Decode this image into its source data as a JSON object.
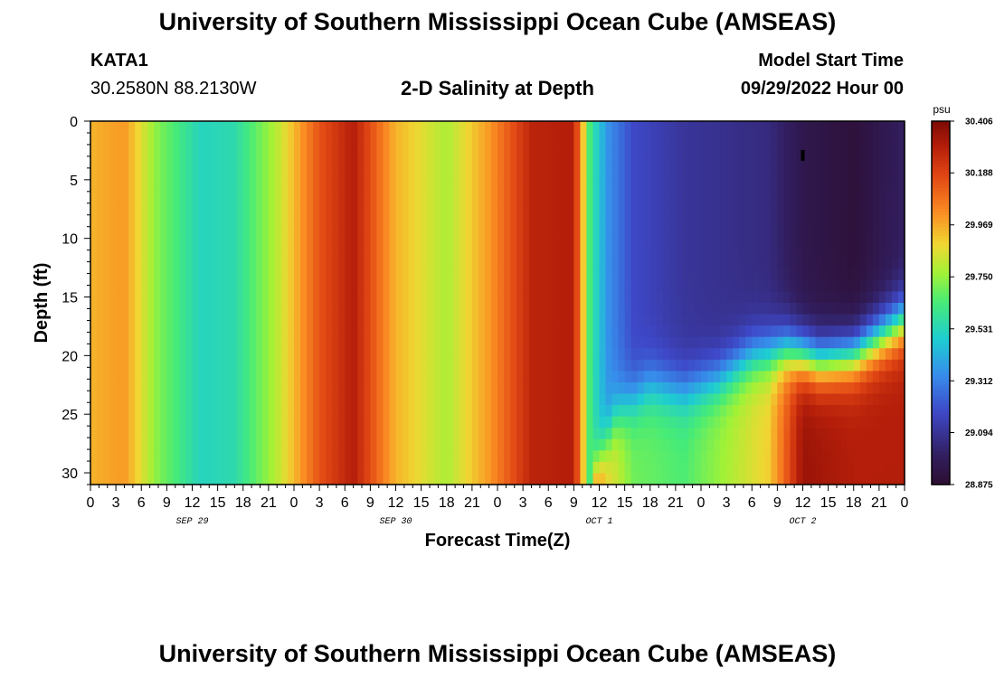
{
  "header": {
    "title": "University of Southern Mississippi Ocean Cube (AMSEAS)",
    "station": "KATA1",
    "coords": "30.2580N  88.2130W",
    "chart_title": "2-D Salinity at Depth",
    "model_start_label": "Model Start Time",
    "model_start_value": "09/29/2022 Hour 00"
  },
  "footer": {
    "title": "University of Southern Mississippi Ocean Cube (AMSEAS)"
  },
  "chart_data": {
    "type": "heatmap",
    "title": "2-D Salinity at Depth",
    "xlabel": "Forecast Time(Z)",
    "ylabel": "Depth (ft)",
    "x_ticks": [
      "0",
      "3",
      "6",
      "9",
      "12",
      "15",
      "18",
      "21",
      "0",
      "3",
      "6",
      "9",
      "12",
      "15",
      "18",
      "21",
      "0",
      "3",
      "6",
      "9",
      "12",
      "15",
      "18",
      "21",
      "0",
      "3",
      "6",
      "9",
      "12",
      "15",
      "18",
      "21",
      "0"
    ],
    "date_labels": [
      "SEP 29",
      "SEP 30",
      "OCT 1",
      "OCT 2"
    ],
    "x_range_hours": [
      0,
      96
    ],
    "y_ticks": [
      0,
      5,
      10,
      15,
      20,
      25,
      30
    ],
    "y_range": [
      0,
      31
    ],
    "y_inverted": true,
    "colorbar": {
      "unit": "psu",
      "min": 28.875,
      "max": 30.406,
      "labels": [
        "30.406",
        "30.188",
        "29.969",
        "29.750",
        "29.531",
        "29.312",
        "29.094",
        "28.875"
      ]
    },
    "column_profile": {
      "description_hours": [
        0,
        4,
        8,
        13,
        17,
        22,
        27,
        31,
        36,
        42,
        47,
        52,
        57,
        59,
        61,
        64,
        70,
        80,
        84,
        90,
        96
      ],
      "surface_psu": [
        29.95,
        30.0,
        29.72,
        29.52,
        29.55,
        29.8,
        30.15,
        30.3,
        29.95,
        29.78,
        30.0,
        30.28,
        30.3,
        29.6,
        29.35,
        29.18,
        29.1,
        29.05,
        28.95,
        28.9,
        29.0
      ],
      "bottom_psu": [
        29.95,
        30.0,
        29.72,
        29.52,
        29.55,
        29.8,
        30.15,
        30.3,
        29.95,
        29.78,
        30.0,
        30.28,
        30.35,
        30.25,
        29.9,
        29.7,
        29.65,
        29.9,
        30.35,
        30.3,
        30.3
      ]
    },
    "halocline_depth_ft": {
      "hours": [
        59,
        62,
        66,
        70,
        74,
        78,
        82,
        86,
        90,
        96
      ],
      "depth": [
        31,
        25,
        22.5,
        23,
        22,
        20,
        19.5,
        20.5,
        20,
        17
      ]
    },
    "marker": {
      "hour": 84,
      "depth_ft": 3,
      "label": ""
    }
  }
}
